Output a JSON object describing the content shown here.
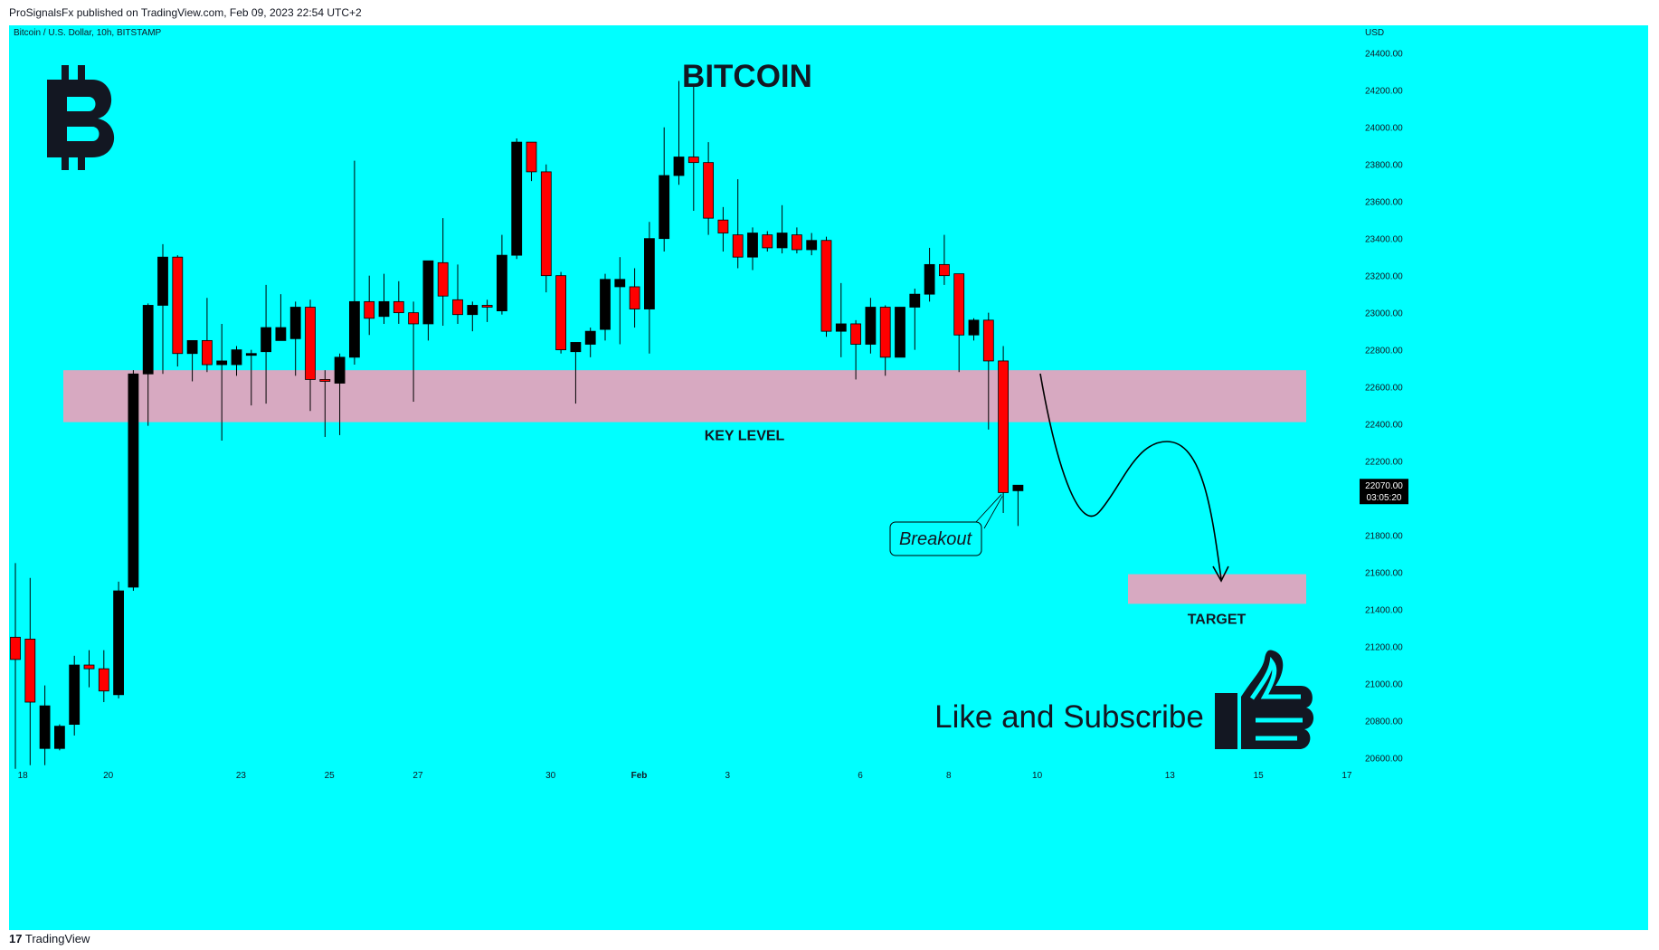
{
  "header": {
    "published": "ProSignalsFx published on TradingView.com, Feb 09, 2023 22:54 UTC+2"
  },
  "footer": {
    "brand": "TradingView",
    "logo_icon": "tradingview-logo-icon"
  },
  "colors": {
    "background": "#00ffff",
    "up": "#000000",
    "down": "#ff0000",
    "zone": "#d7a9c1"
  },
  "chart_data": {
    "type": "candlestick",
    "symbol_line": "Bitcoin / U.S. Dollar, 10h, BITSTAMP",
    "title": "BITCOIN",
    "currency": "USD",
    "ylim": [
      20500,
      24550
    ],
    "y_ticks": [
      "20600.00",
      "20800.00",
      "21000.00",
      "21200.00",
      "21400.00",
      "21600.00",
      "21800.00",
      "22000.00",
      "22200.00",
      "22400.00",
      "22600.00",
      "22800.00",
      "23000.00",
      "23200.00",
      "23400.00",
      "23600.00",
      "23800.00",
      "24000.00",
      "24200.00",
      "24400.00"
    ],
    "x_ticks": [
      {
        "label": "18",
        "bar": 0.5
      },
      {
        "label": "20",
        "bar": 6.3
      },
      {
        "label": "23",
        "bar": 15.3
      },
      {
        "label": "25",
        "bar": 21.3
      },
      {
        "label": "27",
        "bar": 27.3
      },
      {
        "label": "30",
        "bar": 36.3
      },
      {
        "label": "Feb",
        "bar": 42.3
      },
      {
        "label": "3",
        "bar": 48.3
      },
      {
        "label": "6",
        "bar": 57.3
      },
      {
        "label": "8",
        "bar": 63.3
      },
      {
        "label": "10",
        "bar": 69.3
      },
      {
        "label": "13",
        "bar": 78.3
      },
      {
        "label": "15",
        "bar": 84.3
      },
      {
        "label": "17",
        "bar": 90.3
      }
    ],
    "candles": [
      {
        "o": 21250,
        "h": 21650,
        "l": 20540,
        "c": 21130
      },
      {
        "o": 21240,
        "h": 21570,
        "l": 20560,
        "c": 20900
      },
      {
        "o": 20650,
        "h": 20990,
        "l": 20560,
        "c": 20880
      },
      {
        "o": 20650,
        "h": 20780,
        "l": 20640,
        "c": 20770
      },
      {
        "o": 20780,
        "h": 21150,
        "l": 20720,
        "c": 21100
      },
      {
        "o": 21100,
        "h": 21180,
        "l": 20980,
        "c": 21080
      },
      {
        "o": 21080,
        "h": 21180,
        "l": 20900,
        "c": 20960
      },
      {
        "o": 20940,
        "h": 21550,
        "l": 20920,
        "c": 21500
      },
      {
        "o": 21520,
        "h": 22690,
        "l": 21500,
        "c": 22670
      },
      {
        "o": 22670,
        "h": 23050,
        "l": 22390,
        "c": 23040
      },
      {
        "o": 23040,
        "h": 23370,
        "l": 22670,
        "c": 23300
      },
      {
        "o": 23300,
        "h": 23310,
        "l": 22710,
        "c": 22780
      },
      {
        "o": 22780,
        "h": 22830,
        "l": 22630,
        "c": 22850
      },
      {
        "o": 22850,
        "h": 23080,
        "l": 22680,
        "c": 22720
      },
      {
        "o": 22720,
        "h": 22940,
        "l": 22310,
        "c": 22740
      },
      {
        "o": 22720,
        "h": 22820,
        "l": 22660,
        "c": 22800
      },
      {
        "o": 22780,
        "h": 22800,
        "l": 22500,
        "c": 22780
      },
      {
        "o": 22790,
        "h": 23150,
        "l": 22510,
        "c": 22920
      },
      {
        "o": 22850,
        "h": 23100,
        "l": 22860,
        "c": 22920
      },
      {
        "o": 22860,
        "h": 23060,
        "l": 22660,
        "c": 23030
      },
      {
        "o": 23030,
        "h": 23070,
        "l": 22470,
        "c": 22640
      },
      {
        "o": 22640,
        "h": 22690,
        "l": 22330,
        "c": 22630
      },
      {
        "o": 22620,
        "h": 22780,
        "l": 22340,
        "c": 22760
      },
      {
        "o": 22760,
        "h": 23820,
        "l": 22720,
        "c": 23060
      },
      {
        "o": 23060,
        "h": 23200,
        "l": 22880,
        "c": 22970
      },
      {
        "o": 22980,
        "h": 23210,
        "l": 22940,
        "c": 23060
      },
      {
        "o": 23060,
        "h": 23170,
        "l": 22940,
        "c": 23000
      },
      {
        "o": 23000,
        "h": 23060,
        "l": 22520,
        "c": 22940
      },
      {
        "o": 22940,
        "h": 23280,
        "l": 22850,
        "c": 23280
      },
      {
        "o": 23270,
        "h": 23510,
        "l": 22930,
        "c": 23090
      },
      {
        "o": 23070,
        "h": 23260,
        "l": 22940,
        "c": 22990
      },
      {
        "o": 22990,
        "h": 23060,
        "l": 22900,
        "c": 23040
      },
      {
        "o": 23040,
        "h": 23070,
        "l": 22950,
        "c": 23030
      },
      {
        "o": 23010,
        "h": 23420,
        "l": 22990,
        "c": 23310
      },
      {
        "o": 23310,
        "h": 23940,
        "l": 23290,
        "c": 23920
      },
      {
        "o": 23920,
        "h": 23920,
        "l": 23710,
        "c": 23760
      },
      {
        "o": 23760,
        "h": 23800,
        "l": 23110,
        "c": 23200
      },
      {
        "o": 23200,
        "h": 23220,
        "l": 22780,
        "c": 22800
      },
      {
        "o": 22790,
        "h": 22840,
        "l": 22510,
        "c": 22840
      },
      {
        "o": 22830,
        "h": 22920,
        "l": 22760,
        "c": 22900
      },
      {
        "o": 22910,
        "h": 23210,
        "l": 22850,
        "c": 23180
      },
      {
        "o": 23140,
        "h": 23300,
        "l": 22830,
        "c": 23180
      },
      {
        "o": 23140,
        "h": 23240,
        "l": 22920,
        "c": 23020
      },
      {
        "o": 23020,
        "h": 23490,
        "l": 22780,
        "c": 23400
      },
      {
        "o": 23400,
        "h": 24000,
        "l": 23330,
        "c": 23740
      },
      {
        "o": 23740,
        "h": 24250,
        "l": 23690,
        "c": 23840
      },
      {
        "o": 23840,
        "h": 24230,
        "l": 23550,
        "c": 23810
      },
      {
        "o": 23810,
        "h": 23920,
        "l": 23420,
        "c": 23510
      },
      {
        "o": 23500,
        "h": 23570,
        "l": 23330,
        "c": 23430
      },
      {
        "o": 23420,
        "h": 23720,
        "l": 23240,
        "c": 23300
      },
      {
        "o": 23300,
        "h": 23460,
        "l": 23230,
        "c": 23430
      },
      {
        "o": 23420,
        "h": 23440,
        "l": 23330,
        "c": 23350
      },
      {
        "o": 23350,
        "h": 23580,
        "l": 23320,
        "c": 23430
      },
      {
        "o": 23420,
        "h": 23460,
        "l": 23320,
        "c": 23340
      },
      {
        "o": 23340,
        "h": 23430,
        "l": 23310,
        "c": 23390
      },
      {
        "o": 23390,
        "h": 23410,
        "l": 22870,
        "c": 22900
      },
      {
        "o": 22900,
        "h": 23160,
        "l": 22760,
        "c": 22940
      },
      {
        "o": 22940,
        "h": 22960,
        "l": 22640,
        "c": 22830
      },
      {
        "o": 22830,
        "h": 23080,
        "l": 22780,
        "c": 23030
      },
      {
        "o": 23030,
        "h": 23040,
        "l": 22660,
        "c": 22760
      },
      {
        "o": 22760,
        "h": 23010,
        "l": 22760,
        "c": 23030
      },
      {
        "o": 23030,
        "h": 23130,
        "l": 22800,
        "c": 23100
      },
      {
        "o": 23100,
        "h": 23350,
        "l": 23060,
        "c": 23260
      },
      {
        "o": 23260,
        "h": 23420,
        "l": 23150,
        "c": 23200
      },
      {
        "o": 23210,
        "h": 23210,
        "l": 22680,
        "c": 22880
      },
      {
        "o": 22880,
        "h": 22970,
        "l": 22850,
        "c": 22960
      },
      {
        "o": 22960,
        "h": 23000,
        "l": 22370,
        "c": 22740
      },
      {
        "o": 22740,
        "h": 22820,
        "l": 21920,
        "c": 22030
      },
      {
        "o": 22040,
        "h": 22070,
        "l": 21850,
        "c": 22070
      }
    ],
    "annotations": {
      "key_level": {
        "label": "KEY LEVEL",
        "from": 22410,
        "to": 22690
      },
      "target": {
        "label": "TARGET",
        "from": 21430,
        "to": 21590
      },
      "breakout": "Breakout",
      "last_price": "22070.00",
      "countdown": "03:05:20",
      "cta": "Like and Subscribe"
    }
  }
}
